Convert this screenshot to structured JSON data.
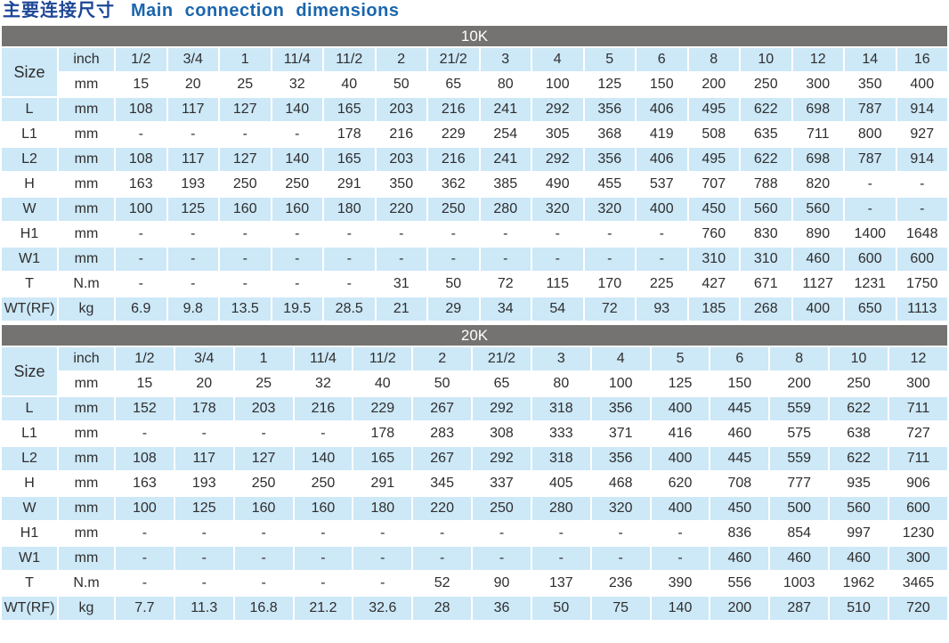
{
  "title": {
    "zh": "主要连接尺寸",
    "en": "Main connection dimensions"
  },
  "colors": {
    "section_header_bg": "#757371",
    "section_header_text": "#ffffff",
    "row_highlight": "#cde8f7",
    "title_zh": "#1e4796",
    "title_en": "#1b66ad",
    "cell_text": "#2e2e2e"
  },
  "tables": [
    {
      "section": "10K",
      "size_row": {
        "label": "Size",
        "units": [
          "inch",
          "mm"
        ],
        "inch": [
          "1/2",
          "3/4",
          "1",
          "11/4",
          "11/2",
          "2",
          "21/2",
          "3",
          "4",
          "5",
          "6",
          "8",
          "10",
          "12",
          "14",
          "16"
        ],
        "mm": [
          "15",
          "20",
          "25",
          "32",
          "40",
          "50",
          "65",
          "80",
          "100",
          "125",
          "150",
          "200",
          "250",
          "300",
          "350",
          "400"
        ]
      },
      "rows": [
        {
          "label": "L",
          "unit": "mm",
          "values": [
            "108",
            "117",
            "127",
            "140",
            "165",
            "203",
            "216",
            "241",
            "292",
            "356",
            "406",
            "495",
            "622",
            "698",
            "787",
            "914"
          ]
        },
        {
          "label": "L1",
          "unit": "mm",
          "values": [
            "-",
            "-",
            "-",
            "-",
            "178",
            "216",
            "229",
            "254",
            "305",
            "368",
            "419",
            "508",
            "635",
            "711",
            "800",
            "927"
          ]
        },
        {
          "label": "L2",
          "unit": "mm",
          "values": [
            "108",
            "117",
            "127",
            "140",
            "165",
            "203",
            "216",
            "241",
            "292",
            "356",
            "406",
            "495",
            "622",
            "698",
            "787",
            "914"
          ]
        },
        {
          "label": "H",
          "unit": "mm",
          "values": [
            "163",
            "193",
            "250",
            "250",
            "291",
            "350",
            "362",
            "385",
            "490",
            "455",
            "537",
            "707",
            "788",
            "820",
            "-",
            "-"
          ]
        },
        {
          "label": "W",
          "unit": "mm",
          "values": [
            "100",
            "125",
            "160",
            "160",
            "180",
            "220",
            "250",
            "280",
            "320",
            "320",
            "400",
            "450",
            "560",
            "560",
            "-",
            "-"
          ]
        },
        {
          "label": "H1",
          "unit": "mm",
          "values": [
            "-",
            "-",
            "-",
            "-",
            "-",
            "-",
            "-",
            "-",
            "-",
            "-",
            "-",
            "760",
            "830",
            "890",
            "1400",
            "1648"
          ]
        },
        {
          "label": "W1",
          "unit": "mm",
          "values": [
            "-",
            "-",
            "-",
            "-",
            "-",
            "-",
            "-",
            "-",
            "-",
            "-",
            "-",
            "310",
            "310",
            "460",
            "600",
            "600"
          ]
        },
        {
          "label": "T",
          "unit": "N.m",
          "values": [
            "-",
            "-",
            "-",
            "-",
            "-",
            "31",
            "50",
            "72",
            "115",
            "170",
            "225",
            "427",
            "671",
            "1127",
            "1231",
            "1750"
          ]
        },
        {
          "label": "WT(RF)",
          "unit": "kg",
          "values": [
            "6.9",
            "9.8",
            "13.5",
            "19.5",
            "28.5",
            "21",
            "29",
            "34",
            "54",
            "72",
            "93",
            "185",
            "268",
            "400",
            "650",
            "1113"
          ]
        }
      ]
    },
    {
      "section": "20K",
      "size_row": {
        "label": "Size",
        "units": [
          "inch",
          "mm"
        ],
        "inch": [
          "1/2",
          "3/4",
          "1",
          "11/4",
          "11/2",
          "2",
          "21/2",
          "3",
          "4",
          "5",
          "6",
          "8",
          "10",
          "12"
        ],
        "mm": [
          "15",
          "20",
          "25",
          "32",
          "40",
          "50",
          "65",
          "80",
          "100",
          "125",
          "150",
          "200",
          "250",
          "300"
        ]
      },
      "rows": [
        {
          "label": "L",
          "unit": "mm",
          "values": [
            "152",
            "178",
            "203",
            "216",
            "229",
            "267",
            "292",
            "318",
            "356",
            "400",
            "445",
            "559",
            "622",
            "711"
          ]
        },
        {
          "label": "L1",
          "unit": "mm",
          "values": [
            "-",
            "-",
            "-",
            "-",
            "178",
            "283",
            "308",
            "333",
            "371",
            "416",
            "460",
            "575",
            "638",
            "727"
          ]
        },
        {
          "label": "L2",
          "unit": "mm",
          "values": [
            "108",
            "117",
            "127",
            "140",
            "165",
            "267",
            "292",
            "318",
            "356",
            "400",
            "445",
            "559",
            "622",
            "711"
          ]
        },
        {
          "label": "H",
          "unit": "mm",
          "values": [
            "163",
            "193",
            "250",
            "250",
            "291",
            "345",
            "337",
            "405",
            "468",
            "620",
            "708",
            "777",
            "935",
            "906"
          ]
        },
        {
          "label": "W",
          "unit": "mm",
          "values": [
            "100",
            "125",
            "160",
            "160",
            "180",
            "220",
            "250",
            "280",
            "320",
            "400",
            "450",
            "500",
            "560",
            "600"
          ]
        },
        {
          "label": "H1",
          "unit": "mm",
          "values": [
            "-",
            "-",
            "-",
            "-",
            "-",
            "-",
            "-",
            "-",
            "-",
            "-",
            "836",
            "854",
            "997",
            "1230"
          ]
        },
        {
          "label": "W1",
          "unit": "mm",
          "values": [
            "-",
            "-",
            "-",
            "-",
            "-",
            "-",
            "-",
            "-",
            "-",
            "-",
            "460",
            "460",
            "460",
            "300"
          ]
        },
        {
          "label": "T",
          "unit": "N.m",
          "values": [
            "-",
            "-",
            "-",
            "-",
            "-",
            "52",
            "90",
            "137",
            "236",
            "390",
            "556",
            "1003",
            "1962",
            "3465"
          ]
        },
        {
          "label": "WT(RF)",
          "unit": "kg",
          "values": [
            "7.7",
            "11.3",
            "16.8",
            "21.2",
            "32.6",
            "28",
            "36",
            "50",
            "75",
            "140",
            "200",
            "287",
            "510",
            "720"
          ]
        }
      ]
    }
  ]
}
